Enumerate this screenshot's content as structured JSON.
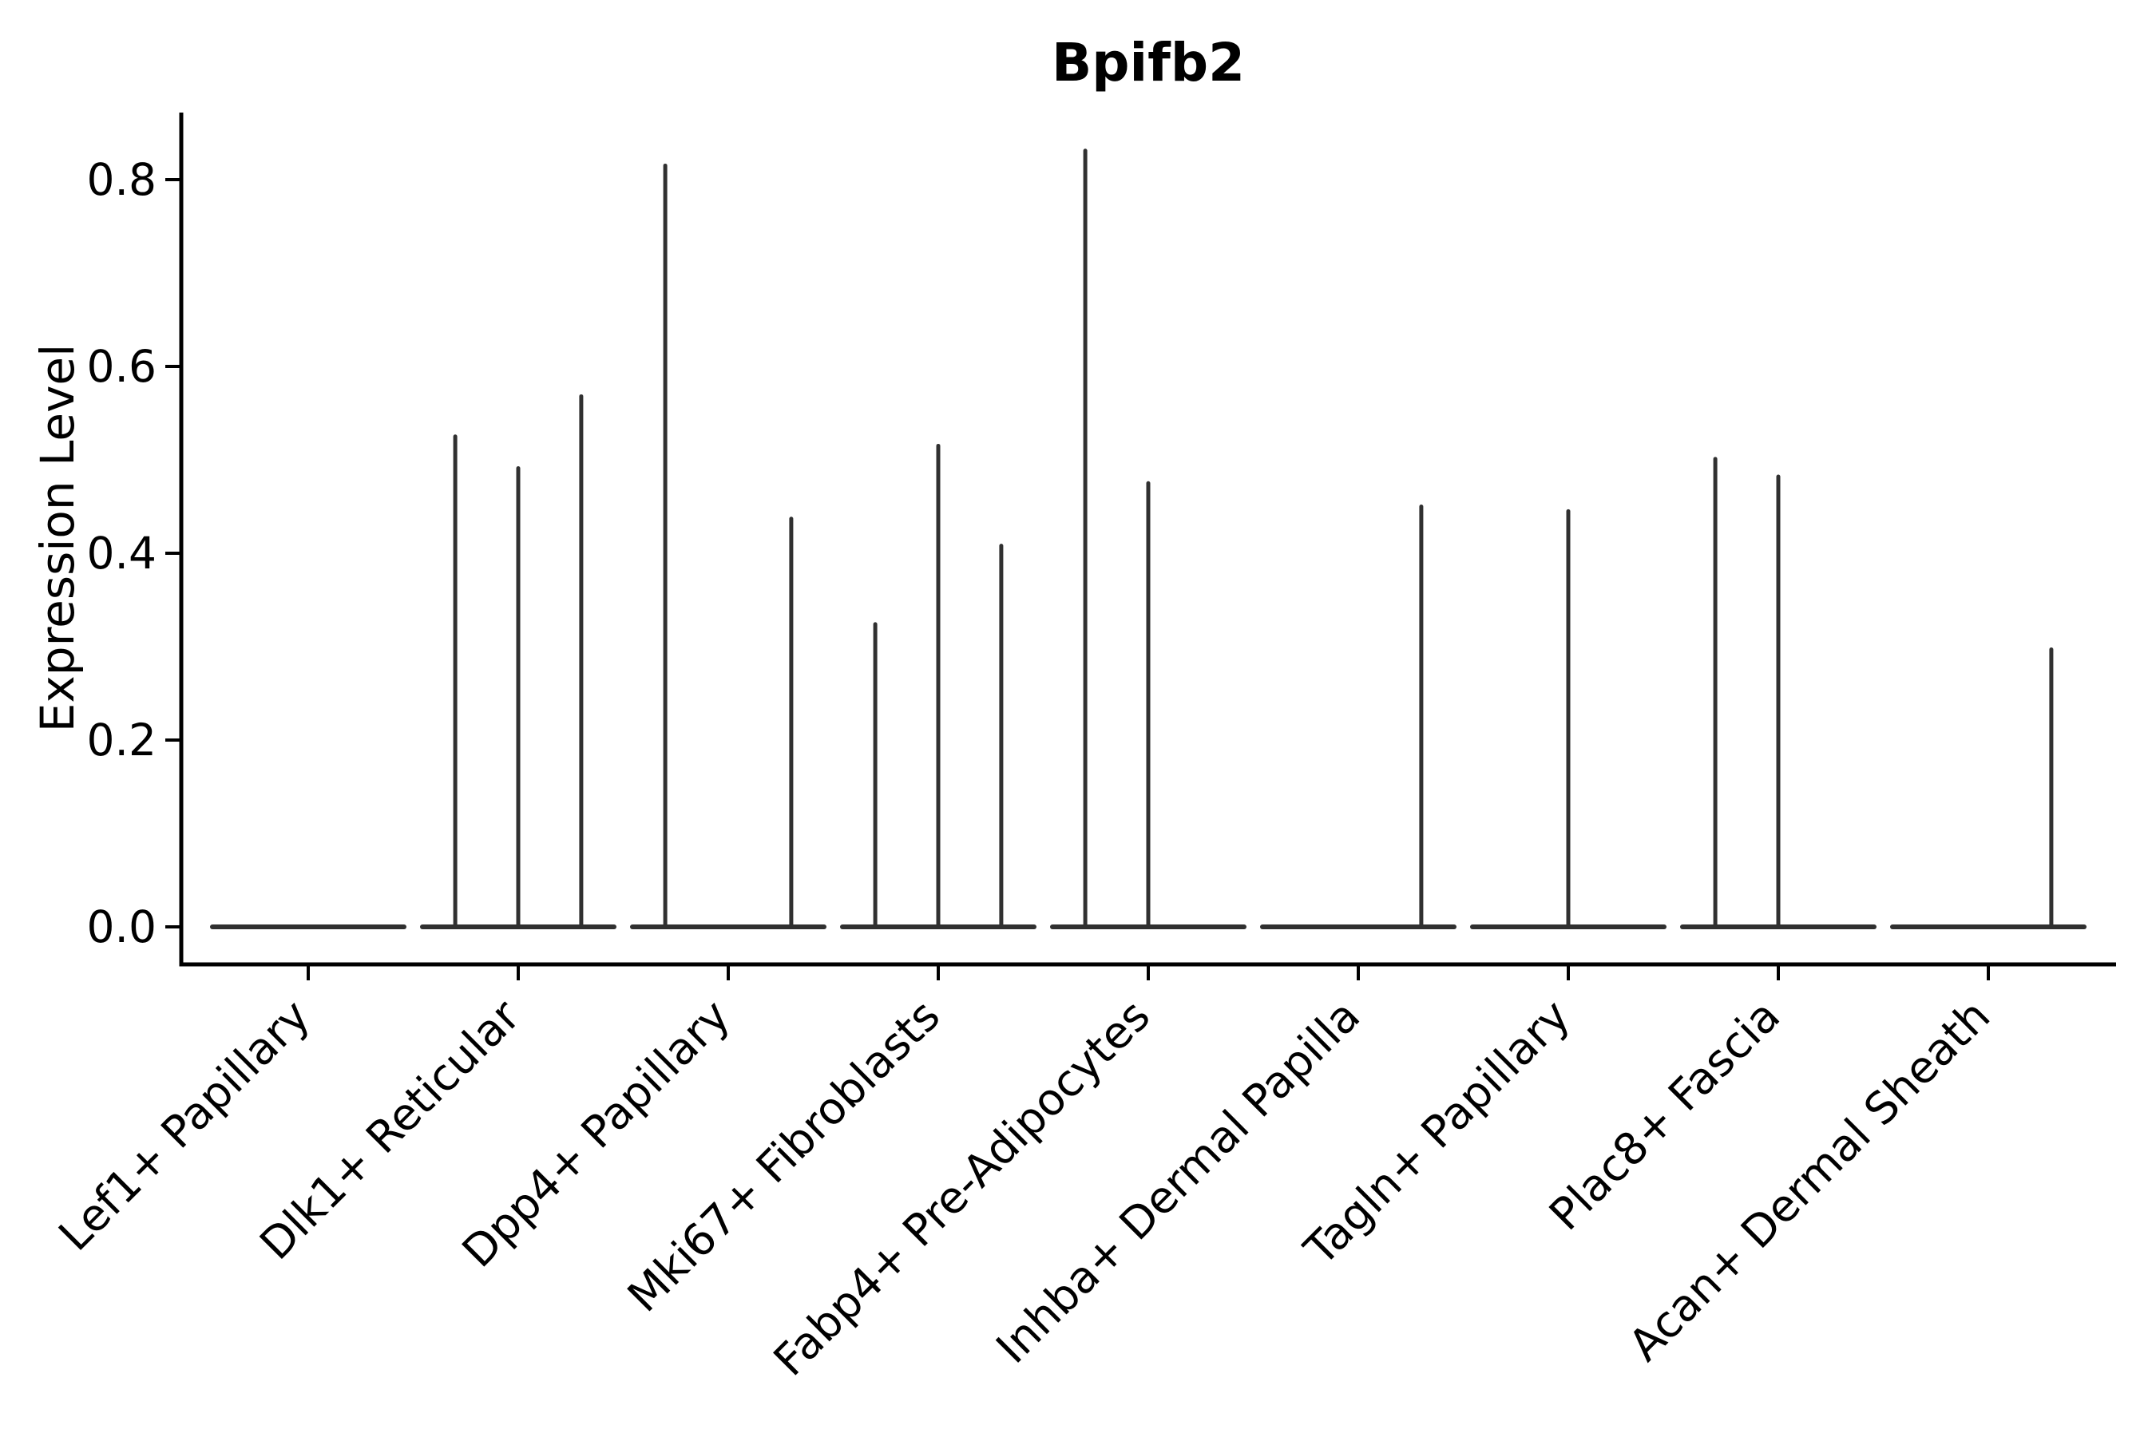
{
  "figure": {
    "background": "#ffffff"
  },
  "chart_data": {
    "type": "violin",
    "title": "Bpifb2",
    "xlabel": "",
    "ylabel": "Expression Level",
    "ylim": [
      0,
      0.87
    ],
    "grid": false,
    "legend": "none",
    "axis_color": "#000000",
    "violin_color": "#303030",
    "y_ticks": [
      "0.0",
      "0.2",
      "0.4",
      "0.6",
      "0.8"
    ],
    "y_tick_values": [
      0.0,
      0.2,
      0.4,
      0.6,
      0.8
    ],
    "categories": [
      "Lef1+ Papillary",
      "Dlk1+ Reticular",
      "Dpp4+ Papillary",
      "Mki67+ Fibroblasts",
      "Fabp4+ Pre-Adipocytes",
      "Inhba+ Dermal Papilla",
      "Tagln+ Papillary",
      "Plac8+ Fascia",
      "Acan+ Dermal Sheath"
    ],
    "violins": [
      {
        "category": "Lef1+ Papillary",
        "zero_body": true,
        "spikes": []
      },
      {
        "category": "Dlk1+ Reticular",
        "zero_body": true,
        "spikes": [
          {
            "offset": -0.3,
            "max_value": 0.525
          },
          {
            "offset": 0.0,
            "max_value": 0.491
          },
          {
            "offset": 0.3,
            "max_value": 0.568
          }
        ]
      },
      {
        "category": "Dpp4+ Papillary",
        "zero_body": true,
        "spikes": [
          {
            "offset": -0.3,
            "max_value": 0.815
          },
          {
            "offset": 0.3,
            "max_value": 0.437
          }
        ]
      },
      {
        "category": "Mki67+ Fibroblasts",
        "zero_body": true,
        "spikes": [
          {
            "offset": -0.3,
            "max_value": 0.324
          },
          {
            "offset": 0.0,
            "max_value": 0.515
          },
          {
            "offset": 0.3,
            "max_value": 0.408
          }
        ]
      },
      {
        "category": "Fabp4+ Pre-Adipocytes",
        "zero_body": true,
        "spikes": [
          {
            "offset": -0.3,
            "max_value": 0.831
          },
          {
            "offset": 0.0,
            "max_value": 0.475
          }
        ]
      },
      {
        "category": "Inhba+ Dermal Papilla",
        "zero_body": true,
        "spikes": [
          {
            "offset": 0.3,
            "max_value": 0.45
          }
        ]
      },
      {
        "category": "Tagln+ Papillary",
        "zero_body": true,
        "spikes": [
          {
            "offset": 0.0,
            "max_value": 0.445
          }
        ]
      },
      {
        "category": "Plac8+ Fascia",
        "zero_body": true,
        "spikes": [
          {
            "offset": -0.3,
            "max_value": 0.501
          },
          {
            "offset": 0.0,
            "max_value": 0.482
          }
        ]
      },
      {
        "category": "Acan+ Dermal Sheath",
        "zero_body": true,
        "spikes": [
          {
            "offset": 0.3,
            "max_value": 0.297
          }
        ]
      }
    ]
  }
}
